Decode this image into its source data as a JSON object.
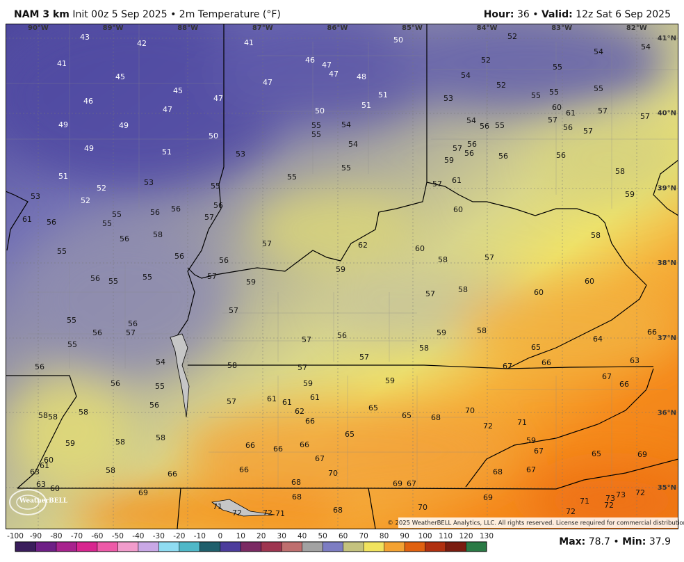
{
  "header": {
    "model": "NAM 3 km",
    "run": "Init 00z 5 Sep 2025",
    "separator": "•",
    "field": "2m Temperature (°F)",
    "hour_label": "Hour:",
    "hour": "36",
    "valid_label": "Valid:",
    "valid": "12z Sat 6 Sep 2025"
  },
  "map": {
    "longitudes": [
      "90°W",
      "89°W",
      "88°W",
      "87°W",
      "86°W",
      "85°W",
      "84°W",
      "83°W",
      "82°W"
    ],
    "latitudes": [
      "41°N",
      "40°N",
      "39°N",
      "38°N",
      "37°N",
      "36°N",
      "35°N"
    ],
    "labels": [
      43,
      42,
      41,
      41,
      50,
      52,
      54,
      54,
      52,
      46,
      47,
      47,
      48,
      45,
      47,
      55,
      54,
      52,
      55,
      45,
      46,
      47,
      51,
      53,
      55,
      55,
      60,
      61,
      57,
      57,
      47,
      50,
      51,
      57,
      56,
      57,
      49,
      49,
      55,
      54,
      54,
      56,
      55,
      55,
      50,
      49,
      51,
      54,
      57,
      56,
      56,
      56,
      56,
      53,
      59,
      55,
      58,
      51,
      55,
      57,
      61,
      53,
      52,
      55,
      59,
      53,
      52,
      56,
      56,
      60,
      61,
      56,
      55,
      55,
      56,
      57,
      58,
      56,
      58,
      57,
      62,
      60,
      55,
      56,
      56,
      58,
      57,
      59,
      57,
      55,
      56,
      55,
      59,
      60,
      58,
      57,
      60,
      57,
      55,
      56,
      56,
      57,
      58,
      59,
      56,
      57,
      66,
      64,
      55,
      65,
      58,
      57,
      54,
      58,
      57,
      67,
      66,
      63,
      56,
      67,
      59,
      59,
      56,
      55,
      66,
      61,
      61,
      61,
      57,
      56,
      65,
      62,
      70,
      58,
      58,
      58,
      65,
      68,
      66,
      72,
      71,
      65,
      58,
      58,
      59,
      59,
      66,
      66,
      66,
      67,
      65,
      69,
      67,
      60,
      61,
      66,
      70,
      63,
      58,
      66,
      68,
      67,
      63,
      60,
      68,
      69,
      67,
      69,
      68,
      69,
      70,
      71,
      72,
      72,
      71,
      68,
      71,
      73,
      73,
      72,
      72,
      72
    ],
    "copyright": "© 2025 WeatherBELL Analytics, LLC. All rights reserved. License required for commercial distribution.",
    "logo": "WeatherBELL"
  },
  "colorbar": {
    "ticks": [
      -100,
      -90,
      -80,
      -70,
      -60,
      -50,
      -40,
      -30,
      -20,
      -10,
      0,
      10,
      20,
      30,
      40,
      50,
      60,
      70,
      80,
      90,
      100,
      110,
      120,
      130
    ],
    "colors": [
      "#3a1d5c",
      "#6e1f86",
      "#a8238e",
      "#d8258f",
      "#ee5aa8",
      "#f29ccc",
      "#c9a8e6",
      "#8fdcf2",
      "#4fb8c8",
      "#1f5f6c",
      "#4c3c9c",
      "#7b2a63",
      "#9e3550",
      "#bf6f6f",
      "#a2a2a2",
      "#7d7dc2",
      "#c4c27e",
      "#f1e35e",
      "#f3a232",
      "#e0610f",
      "#b0300f",
      "#7a1c0f",
      "#2a7a45"
    ]
  },
  "stats": {
    "max_label": "Max:",
    "max": 78.7,
    "separator": "•",
    "min_label": "Min:",
    "min": 37.9
  }
}
